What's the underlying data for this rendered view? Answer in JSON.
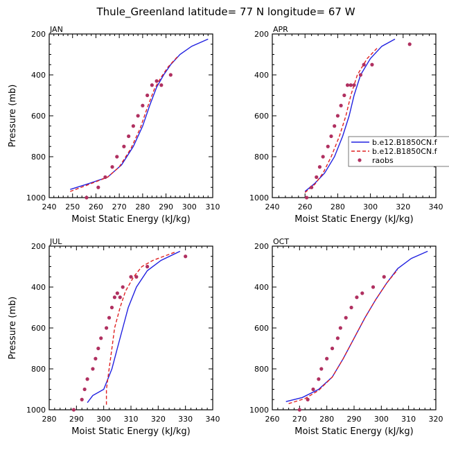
{
  "figure": {
    "title": "Thule_Greenland  latitude= 77 N longitude= 67 W"
  },
  "colors": {
    "model1": "#2020e0",
    "model2": "#e02020",
    "raobs": "#b03060",
    "axis": "#000000"
  },
  "chart_data": [
    {
      "type": "line",
      "panel": "JAN",
      "xlabel": "Moist Static Energy (kJ/kg)",
      "ylabel": "Pressure (mb)",
      "xlim": [
        240,
        310
      ],
      "ylim": [
        1000,
        200
      ],
      "y_inverted": true,
      "xticks": [
        "240",
        "250",
        "260",
        "270",
        "280",
        "290",
        "300",
        "310"
      ],
      "yticks": [
        "200",
        "400",
        "600",
        "800",
        "1000"
      ],
      "series": [
        {
          "style": "solid",
          "color": "#2020e0",
          "x": [
            249,
            256,
            265,
            271,
            276,
            280,
            283,
            286,
            289,
            292,
            296,
            301,
            308
          ],
          "y": [
            960,
            935,
            900,
            840,
            750,
            650,
            550,
            460,
            400,
            350,
            300,
            260,
            225
          ]
        },
        {
          "style": "dashed",
          "color": "#e02020",
          "x": [
            249,
            256,
            265,
            270,
            275,
            279,
            282,
            285,
            288,
            291,
            295
          ],
          "y": [
            970,
            940,
            900,
            850,
            760,
            660,
            560,
            470,
            410,
            360,
            310
          ]
        },
        {
          "style": "markers",
          "color": "#b03060",
          "x": [
            256,
            261,
            264,
            267,
            269,
            272,
            274,
            276,
            278,
            280,
            282,
            284,
            286,
            288,
            292
          ],
          "y": [
            1000,
            950,
            900,
            850,
            800,
            750,
            700,
            650,
            600,
            550,
            500,
            450,
            430,
            450,
            400
          ]
        }
      ]
    },
    {
      "type": "line",
      "panel": "APR",
      "xlim": [
        240,
        340
      ],
      "ylim": [
        1000,
        200
      ],
      "y_inverted": true,
      "xlabel": "Moist Static Energy (kJ/kg)",
      "xticks": [
        "240",
        "260",
        "280",
        "300",
        "320",
        "340"
      ],
      "yticks": [
        "200",
        "400",
        "600",
        "800",
        "1000"
      ],
      "legend": {
        "placement": "right",
        "entries": [
          "b.e12.B1850CN.f",
          "b.e12.B1850CN.f",
          "raobs"
        ]
      },
      "series": [
        {
          "style": "solid",
          "color": "#2020e0",
          "x": [
            260,
            266,
            272,
            278,
            283,
            287,
            290,
            294,
            300,
            307,
            315
          ],
          "y": [
            970,
            930,
            880,
            800,
            700,
            600,
            500,
            400,
            320,
            260,
            225
          ]
        },
        {
          "style": "dashed",
          "color": "#e02020",
          "x": [
            260,
            266,
            271,
            276,
            281,
            285,
            288,
            292,
            298,
            304
          ],
          "y": [
            975,
            935,
            880,
            800,
            700,
            600,
            500,
            400,
            320,
            270
          ]
        },
        {
          "style": "markers",
          "color": "#b03060",
          "x": [
            261,
            264,
            267,
            269,
            271,
            274,
            276,
            278,
            280,
            282,
            284,
            286,
            288,
            290,
            294,
            296,
            301,
            324
          ],
          "y": [
            1000,
            950,
            900,
            850,
            800,
            750,
            700,
            650,
            600,
            550,
            500,
            450,
            450,
            450,
            400,
            350,
            350,
            250
          ]
        }
      ]
    },
    {
      "type": "line",
      "panel": "JUL",
      "xlabel": "Moist Static Energy (kJ/kg)",
      "ylabel": "Pressure (mb)",
      "xlim": [
        280,
        340
      ],
      "ylim": [
        1000,
        200
      ],
      "y_inverted": true,
      "xticks": [
        "280",
        "290",
        "300",
        "310",
        "320",
        "330",
        "340"
      ],
      "yticks": [
        "200",
        "400",
        "600",
        "800",
        "1000"
      ],
      "series": [
        {
          "style": "solid",
          "color": "#2020e0",
          "x": [
            294,
            296,
            300,
            303,
            305,
            307,
            309,
            312,
            316,
            321,
            328
          ],
          "y": [
            965,
            930,
            900,
            800,
            700,
            600,
            500,
            400,
            320,
            270,
            225
          ]
        },
        {
          "style": "dashed",
          "color": "#e02020",
          "x": [
            301,
            301,
            302,
            303,
            304,
            306,
            308,
            311,
            314,
            318,
            326
          ],
          "y": [
            975,
            900,
            800,
            700,
            600,
            500,
            420,
            350,
            300,
            270,
            230
          ]
        },
        {
          "style": "markers",
          "color": "#b03060",
          "x": [
            289,
            292,
            293,
            294,
            296,
            297,
            298,
            299,
            301,
            302,
            303,
            304,
            305,
            306,
            307,
            310,
            312,
            316,
            330
          ],
          "y": [
            1000,
            950,
            900,
            850,
            800,
            750,
            700,
            650,
            600,
            550,
            500,
            450,
            430,
            450,
            400,
            350,
            350,
            300,
            250
          ]
        }
      ]
    },
    {
      "type": "line",
      "panel": "OCT",
      "xlabel": "Moist Static Energy (kJ/kg)",
      "xlim": [
        260,
        320
      ],
      "ylim": [
        1000,
        200
      ],
      "y_inverted": true,
      "xticks": [
        "260",
        "270",
        "280",
        "290",
        "300",
        "310",
        "320"
      ],
      "yticks": [
        "200",
        "400",
        "600",
        "800",
        "1000"
      ],
      "series": [
        {
          "style": "solid",
          "color": "#2020e0",
          "x": [
            265,
            271,
            277,
            282,
            286,
            290,
            294,
            298,
            302,
            306,
            311,
            317
          ],
          "y": [
            960,
            940,
            900,
            840,
            750,
            650,
            550,
            460,
            380,
            310,
            260,
            225
          ]
        },
        {
          "style": "dashed",
          "color": "#e02020",
          "x": [
            266,
            272,
            277,
            282,
            286,
            290,
            294,
            298,
            302,
            306
          ],
          "y": [
            970,
            945,
            905,
            840,
            750,
            650,
            550,
            460,
            380,
            315
          ]
        },
        {
          "style": "markers",
          "color": "#b03060",
          "x": [
            270,
            273,
            275,
            277,
            278,
            280,
            282,
            284,
            285,
            287,
            289,
            291,
            293,
            297,
            301
          ],
          "y": [
            1000,
            950,
            900,
            850,
            800,
            750,
            700,
            650,
            600,
            550,
            500,
            450,
            430,
            400,
            350
          ]
        }
      ]
    }
  ]
}
